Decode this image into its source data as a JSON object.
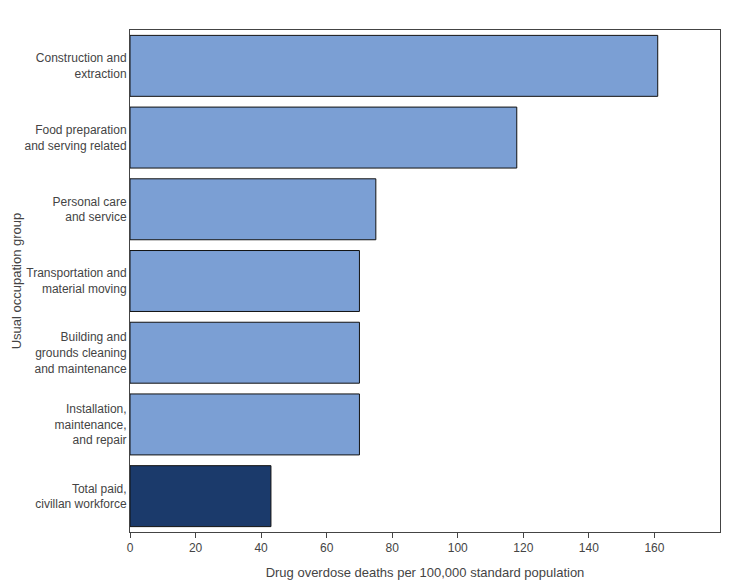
{
  "chart_data": {
    "type": "bar",
    "orientation": "horizontal",
    "categories": [
      "Total paid,\ncivillan workforce",
      "Installation,\nmaintenance,\nand repair",
      "Building and\ngrounds cleaning\nand maintenance",
      "Transportation and\nmaterial moving",
      "Personal care\nand service",
      "Food preparation\nand serving related",
      "Construction and\nextraction"
    ],
    "values": [
      43,
      70,
      70,
      70,
      75,
      118,
      161
    ],
    "colors": [
      "#1b3a6b",
      "#7b9fd4",
      "#7b9fd4",
      "#7b9fd4",
      "#7b9fd4",
      "#7b9fd4",
      "#7b9fd4"
    ],
    "xlabel": "Drug overdose deaths per 100,000 standard population",
    "ylabel": "Usual occupation group",
    "xlim": [
      0,
      180
    ],
    "xticks": [
      0,
      20,
      40,
      60,
      80,
      100,
      120,
      140,
      160
    ],
    "grid": false
  }
}
